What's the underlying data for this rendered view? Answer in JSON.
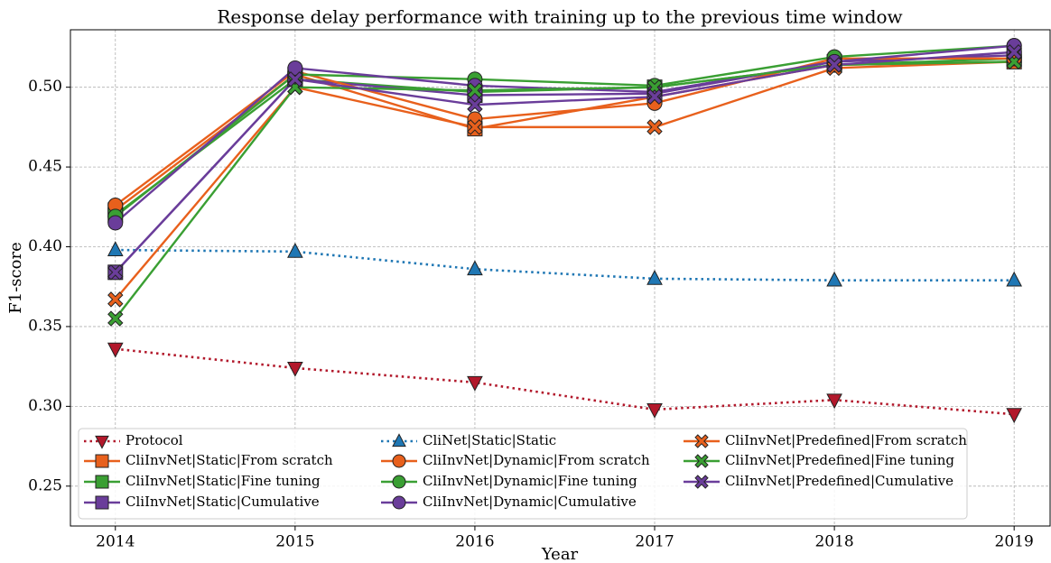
{
  "chart_data": {
    "type": "line",
    "title": "Response delay performance with training up to the previous time window",
    "x_label": "Year",
    "y_label": "F1-score",
    "x": [
      2014,
      2015,
      2016,
      2017,
      2018,
      2019
    ],
    "xlim": [
      2013.75,
      2019.2
    ],
    "xticks": [
      2014,
      2015,
      2016,
      2017,
      2018,
      2019
    ],
    "ylim": [
      0.225,
      0.536
    ],
    "yticks": [
      0.25,
      0.3,
      0.35,
      0.4,
      0.45,
      0.5
    ],
    "grid": true,
    "legend": "lower left",
    "series": [
      {
        "name": "Protocol",
        "color": "#b2182b",
        "marker": "triangle_down",
        "linestyle": "dotted",
        "values": [
          0.336,
          0.324,
          0.315,
          0.298,
          0.304,
          0.295
        ]
      },
      {
        "name": "CliInvNet|Static|From scratch",
        "color": "#e8601c",
        "marker": "square",
        "linestyle": "solid",
        "values": [
          0.423,
          0.508,
          0.474,
          0.494,
          0.514,
          0.516
        ]
      },
      {
        "name": "CliInvNet|Static|Fine tuning",
        "color": "#3a9f33",
        "marker": "square",
        "linestyle": "solid",
        "values": [
          0.42,
          0.505,
          0.497,
          0.5,
          0.514,
          0.518
        ]
      },
      {
        "name": "CliInvNet|Static|Cumulative",
        "color": "#6a3d9a",
        "marker": "square",
        "linestyle": "solid",
        "values": [
          0.384,
          0.505,
          0.495,
          0.496,
          0.516,
          0.52
        ]
      },
      {
        "name": "CliNet|Static|Static",
        "color": "#1f77b4",
        "marker": "triangle_up",
        "linestyle": "dotted",
        "values": [
          0.398,
          0.397,
          0.386,
          0.38,
          0.379,
          0.379
        ]
      },
      {
        "name": "CliInvNet|Dynamic|From scratch",
        "color": "#e8601c",
        "marker": "circle",
        "linestyle": "solid",
        "values": [
          0.426,
          0.51,
          0.48,
          0.49,
          0.518,
          0.518
        ]
      },
      {
        "name": "CliInvNet|Dynamic|Fine tuning",
        "color": "#3a9f33",
        "marker": "circle",
        "linestyle": "solid",
        "values": [
          0.419,
          0.508,
          0.505,
          0.501,
          0.519,
          0.526
        ]
      },
      {
        "name": "CliInvNet|Dynamic|Cumulative",
        "color": "#6a3d9a",
        "marker": "circle",
        "linestyle": "solid",
        "values": [
          0.415,
          0.512,
          0.501,
          0.497,
          0.516,
          0.526
        ]
      },
      {
        "name": "CliInvNet|Predefined|From scratch",
        "color": "#e8601c",
        "marker": "x",
        "linestyle": "solid",
        "values": [
          0.367,
          0.5,
          0.475,
          0.475,
          0.512,
          0.516
        ]
      },
      {
        "name": "CliInvNet|Predefined|Fine tuning",
        "color": "#3a9f33",
        "marker": "x",
        "linestyle": "solid",
        "values": [
          0.355,
          0.5,
          0.498,
          0.5,
          0.514,
          0.516
        ]
      },
      {
        "name": "CliInvNet|Predefined|Cumulative",
        "color": "#6a3d9a",
        "marker": "x",
        "linestyle": "solid",
        "values": [
          0.384,
          0.505,
          0.489,
          0.494,
          0.514,
          0.522
        ]
      }
    ]
  }
}
